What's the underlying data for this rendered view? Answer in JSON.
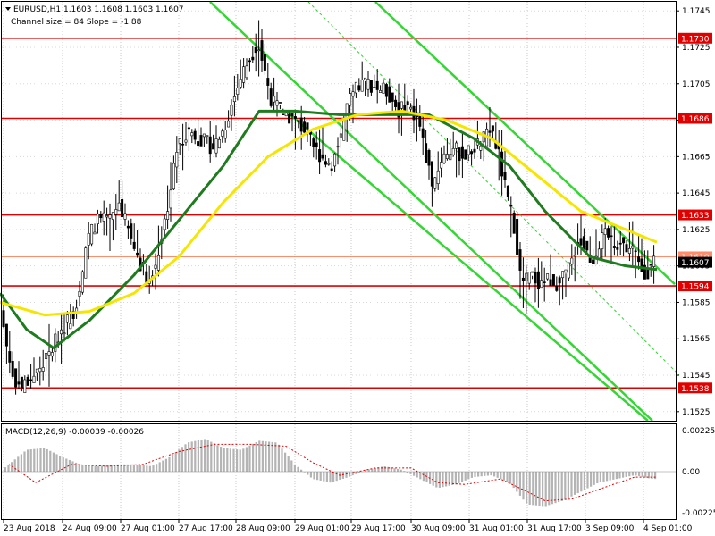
{
  "chart_data": [
    {
      "type": "candlestick",
      "header": {
        "symbol_line": "EURUSD,H1  1.1603 1.1608 1.1603 1.1607",
        "indicator_line": "Channel size = 84 Slope = -1.88"
      },
      "ylim": [
        1.152,
        1.175
      ],
      "y_ticks": [
        "1.1745",
        "1.1725",
        "1.1705",
        "1.1685",
        "1.1665",
        "1.1645",
        "1.1625",
        "1.1605",
        "1.1585",
        "1.1565",
        "1.1545",
        "1.1525"
      ],
      "x_ticks": [
        "23 Aug 2018",
        "24 Aug 09:00",
        "27 Aug 01:00",
        "27 Aug 17:00",
        "28 Aug 09:00",
        "29 Aug 01:00",
        "29 Aug 17:00",
        "30 Aug 09:00",
        "31 Aug 01:00",
        "31 Aug 17:00",
        "3 Sep 09:00",
        "4 Sep 01:00"
      ],
      "levels": [
        {
          "label": "1.1730",
          "value": 1.173,
          "color": "#e00000"
        },
        {
          "label": "1.1686",
          "value": 1.1686,
          "color": "#e00000"
        },
        {
          "label": "1.1633",
          "value": 1.1633,
          "color": "#e00000"
        },
        {
          "label": "1.1610",
          "value": 1.161,
          "color": "#ff8c6a"
        },
        {
          "label": "1.1594",
          "value": 1.1594,
          "color": "#e00000"
        },
        {
          "label": "1.1538",
          "value": 1.1538,
          "color": "#e00000"
        }
      ],
      "current_price": {
        "label": "1.1607",
        "value": 1.1607
      },
      "price_path": [
        [
          0,
          1.159
        ],
        [
          8,
          1.1565
        ],
        [
          15,
          1.1545
        ],
        [
          25,
          1.1538
        ],
        [
          40,
          1.1545
        ],
        [
          55,
          1.1555
        ],
        [
          70,
          1.157
        ],
        [
          85,
          1.158
        ],
        [
          95,
          1.1605
        ],
        [
          100,
          1.162
        ],
        [
          110,
          1.163
        ],
        [
          125,
          1.163
        ],
        [
          135,
          1.164
        ],
        [
          148,
          1.162
        ],
        [
          160,
          1.1605
        ],
        [
          170,
          1.1595
        ],
        [
          180,
          1.1615
        ],
        [
          190,
          1.164
        ],
        [
          200,
          1.167
        ],
        [
          212,
          1.168
        ],
        [
          225,
          1.1675
        ],
        [
          240,
          1.167
        ],
        [
          252,
          1.168
        ],
        [
          262,
          1.1695
        ],
        [
          272,
          1.171
        ],
        [
          282,
          1.172
        ],
        [
          290,
          1.1728
        ],
        [
          298,
          1.1712
        ],
        [
          306,
          1.1695
        ],
        [
          318,
          1.169
        ],
        [
          330,
          1.1685
        ],
        [
          342,
          1.168
        ],
        [
          352,
          1.167
        ],
        [
          362,
          1.1665
        ],
        [
          372,
          1.166
        ],
        [
          382,
          1.1675
        ],
        [
          392,
          1.1695
        ],
        [
          402,
          1.1703
        ],
        [
          412,
          1.1706
        ],
        [
          424,
          1.1703
        ],
        [
          436,
          1.17
        ],
        [
          448,
          1.169
        ],
        [
          458,
          1.1693
        ],
        [
          470,
          1.1685
        ],
        [
          478,
          1.1665
        ],
        [
          486,
          1.165
        ],
        [
          496,
          1.1665
        ],
        [
          508,
          1.167
        ],
        [
          520,
          1.1665
        ],
        [
          532,
          1.167
        ],
        [
          544,
          1.1675
        ],
        [
          552,
          1.168
        ],
        [
          560,
          1.1665
        ],
        [
          568,
          1.1645
        ],
        [
          578,
          1.1625
        ],
        [
          585,
          1.1595
        ],
        [
          595,
          1.16
        ],
        [
          605,
          1.1596
        ],
        [
          615,
          1.1598
        ],
        [
          628,
          1.1595
        ],
        [
          640,
          1.1605
        ],
        [
          648,
          1.162
        ],
        [
          656,
          1.1615
        ],
        [
          664,
          1.1608
        ],
        [
          672,
          1.1617
        ],
        [
          680,
          1.1622
        ],
        [
          690,
          1.1618
        ],
        [
          700,
          1.1616
        ],
        [
          710,
          1.1614
        ],
        [
          718,
          1.1604
        ],
        [
          726,
          1.1601
        ],
        [
          734,
          1.1607
        ]
      ],
      "moving_averages": [
        {
          "color": "#1e7b1e",
          "values": [
            [
              0,
              1.159
            ],
            [
              30,
              1.157
            ],
            [
              60,
              1.156
            ],
            [
              100,
              1.1575
            ],
            [
              150,
              1.16
            ],
            [
              200,
              1.163
            ],
            [
              250,
              1.166
            ],
            [
              290,
              1.169
            ],
            [
              330,
              1.169
            ],
            [
              380,
              1.1688
            ],
            [
              430,
              1.1688
            ],
            [
              480,
              1.1688
            ],
            [
              530,
              1.1675
            ],
            [
              570,
              1.166
            ],
            [
              610,
              1.1635
            ],
            [
              660,
              1.161
            ],
            [
              700,
              1.1605
            ],
            [
              735,
              1.1603
            ]
          ]
        },
        {
          "color": "#f5e600",
          "values": [
            [
              0,
              1.1585
            ],
            [
              50,
              1.1578
            ],
            [
              100,
              1.158
            ],
            [
              150,
              1.159
            ],
            [
              200,
              1.161
            ],
            [
              250,
              1.164
            ],
            [
              300,
              1.1665
            ],
            [
              350,
              1.168
            ],
            [
              400,
              1.1688
            ],
            [
              450,
              1.169
            ],
            [
              500,
              1.1685
            ],
            [
              550,
              1.1675
            ],
            [
              600,
              1.1655
            ],
            [
              650,
              1.1635
            ],
            [
              700,
              1.1625
            ],
            [
              735,
              1.1618
            ]
          ]
        }
      ],
      "channel": {
        "color": "#33d633",
        "lines": [
          [
            [
              235,
              1.175
            ],
            [
              730,
              1.152
            ]
          ],
          [
            [
              420,
              1.175
            ],
            [
              755,
              1.1595
            ]
          ],
          [
            [
              320,
              1.169
            ],
            [
              725,
              1.152
            ]
          ]
        ],
        "midline": [
          [
            345,
            1.175
          ],
          [
            760,
            1.1545
          ]
        ]
      }
    },
    {
      "type": "bar",
      "title": "MACD(12,26,9) -0.00039 -0.00026",
      "ylim": [
        -0.0026,
        0.0026
      ],
      "y_ticks": [
        "0.00225",
        "0.00",
        "-0.00225"
      ],
      "histogram": [
        [
          10,
          0.0004
        ],
        [
          30,
          0.0012
        ],
        [
          50,
          0.0013
        ],
        [
          70,
          0.0008
        ],
        [
          90,
          0.0004
        ],
        [
          110,
          0.0003
        ],
        [
          130,
          0.0004
        ],
        [
          150,
          0.0004
        ],
        [
          170,
          0.0003
        ],
        [
          190,
          0.0008
        ],
        [
          210,
          0.0016
        ],
        [
          230,
          0.0018
        ],
        [
          250,
          0.0013
        ],
        [
          270,
          0.0012
        ],
        [
          290,
          0.0017
        ],
        [
          310,
          0.0016
        ],
        [
          330,
          0.0004
        ],
        [
          350,
          -0.0004
        ],
        [
          370,
          -0.0006
        ],
        [
          390,
          -0.0003
        ],
        [
          410,
          0.0001
        ],
        [
          430,
          0.0003
        ],
        [
          450,
          0.0001
        ],
        [
          470,
          -0.0004
        ],
        [
          490,
          -0.0009
        ],
        [
          510,
          -0.0007
        ],
        [
          530,
          -0.0003
        ],
        [
          550,
          -0.0002
        ],
        [
          570,
          -0.0006
        ],
        [
          590,
          -0.0018
        ],
        [
          610,
          -0.0019
        ],
        [
          630,
          -0.0016
        ],
        [
          650,
          -0.0011
        ],
        [
          670,
          -0.0006
        ],
        [
          690,
          -0.0004
        ],
        [
          710,
          -0.0002
        ],
        [
          730,
          -0.0004
        ]
      ],
      "signal": [
        [
          10,
          0.0004
        ],
        [
          40,
          -0.0006
        ],
        [
          80,
          0.0004
        ],
        [
          120,
          0.0003
        ],
        [
          160,
          0.0004
        ],
        [
          200,
          0.0011
        ],
        [
          240,
          0.0015
        ],
        [
          280,
          0.0015
        ],
        [
          320,
          0.0014
        ],
        [
          350,
          0.0005
        ],
        [
          380,
          -0.0002
        ],
        [
          420,
          0.0002
        ],
        [
          460,
          0.0002
        ],
        [
          490,
          -0.0006
        ],
        [
          520,
          -0.0007
        ],
        [
          560,
          -0.0004
        ],
        [
          590,
          -0.0011
        ],
        [
          610,
          -0.0016
        ],
        [
          640,
          -0.0015
        ],
        [
          680,
          -0.0008
        ],
        [
          710,
          -0.0003
        ],
        [
          735,
          -0.0003
        ]
      ]
    }
  ]
}
